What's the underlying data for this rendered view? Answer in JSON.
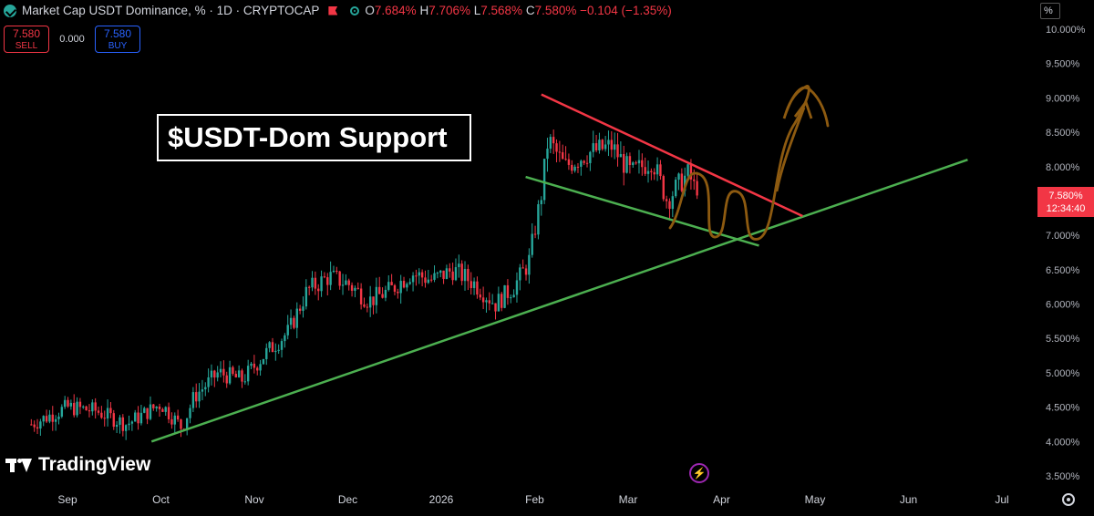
{
  "header": {
    "title": "Market Cap USDT Dominance, % · 1D · CRYPTOCAP",
    "open_label": "O",
    "open": "7.684%",
    "high_label": "H",
    "high": "7.706%",
    "low_label": "L",
    "low": "7.568%",
    "close_label": "C",
    "close": "7.580%",
    "change": "−0.104 (−1.35%)"
  },
  "trade": {
    "sell_price": "7.580",
    "sell_label": "SELL",
    "spread": "0.000",
    "buy_price": "7.580",
    "buy_label": "BUY"
  },
  "scale_mode": "%",
  "annotation": "$USDT-Dom Support",
  "price_tag": {
    "price": "7.580%",
    "countdown": "12:34:40"
  },
  "logo": "TradingView",
  "icons": [
    "coin-icon",
    "flag-icon",
    "dot-icon",
    "bolt-icon",
    "gear-icon"
  ],
  "colors": {
    "up": "#26a69a",
    "down": "#f23645",
    "support": "#4caf50",
    "resistance": "#f23645",
    "projection": "#8d5a10"
  },
  "chart_data": {
    "type": "candlestick",
    "y_ticks": [
      "10.000%",
      "9.500%",
      "9.000%",
      "8.500%",
      "8.000%",
      "7.500%",
      "7.000%",
      "6.500%",
      "6.000%",
      "5.500%",
      "5.000%",
      "4.500%",
      "4.000%",
      "3.500%"
    ],
    "x_ticks": [
      "Sep",
      "Oct",
      "Nov",
      "Dec",
      "2026",
      "Feb",
      "Mar",
      "Apr",
      "May",
      "Jun",
      "Jul"
    ],
    "ylim": [
      3.4,
      10.1
    ],
    "grid": false,
    "series": [
      {
        "points": [
          [
            "Aug 20",
            4.25
          ],
          [
            "Sep 1",
            4.5
          ],
          [
            "Sep 10",
            4.45
          ],
          [
            "Sep 20",
            4.25
          ],
          [
            "Oct 1",
            4.55
          ],
          [
            "Oct 8",
            4.2
          ],
          [
            "Oct 12",
            4.65
          ],
          [
            "Oct 20",
            5.0
          ],
          [
            "Oct 28",
            4.9
          ],
          [
            "Nov 5",
            5.3
          ],
          [
            "Nov 12",
            5.6
          ],
          [
            "Nov 18",
            6.2
          ],
          [
            "Nov 25",
            6.4
          ],
          [
            "Dec 1",
            6.3
          ],
          [
            "Dec 8",
            6.05
          ],
          [
            "Dec 15",
            6.2
          ],
          [
            "Dec 22",
            6.45
          ],
          [
            "Dec 29",
            6.35
          ],
          [
            "Jan 5",
            6.5
          ],
          [
            "Jan 12",
            6.3
          ],
          [
            "Jan 19",
            6.0
          ],
          [
            "Jan 25",
            6.25
          ],
          [
            "Jan 30",
            6.6
          ],
          [
            "Feb 3",
            7.6
          ],
          [
            "Feb 5",
            8.4
          ],
          [
            "Feb 10",
            8.0
          ],
          [
            "Feb 17",
            8.2
          ],
          [
            "Feb 24",
            8.3
          ],
          [
            "Mar 2",
            7.9
          ],
          [
            "Mar 9",
            8.1
          ],
          [
            "Mar 14",
            7.5
          ],
          [
            "Mar 17",
            7.7
          ],
          [
            "Mar 21",
            7.9
          ],
          [
            "Mar 24",
            7.58
          ]
        ]
      }
    ],
    "trendlines": [
      {
        "name": "support",
        "from": [
          "Sep 28",
          4.0
        ],
        "to": [
          "Jun 20",
          8.1
        ]
      },
      {
        "name": "resistance",
        "from": [
          "Feb 3",
          9.05
        ],
        "to": [
          "Apr 27",
          7.28
        ]
      },
      {
        "name": "channel-bottom",
        "from": [
          "Jan 29",
          7.85
        ],
        "to": [
          "Apr 13",
          6.85
        ]
      }
    ]
  }
}
